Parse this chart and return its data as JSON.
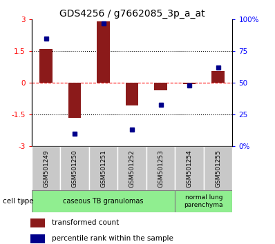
{
  "title": "GDS4256 / g7662085_3p_a_at",
  "samples": [
    "GSM501249",
    "GSM501250",
    "GSM501251",
    "GSM501252",
    "GSM501253",
    "GSM501254",
    "GSM501255"
  ],
  "transformed_count": [
    1.6,
    -1.65,
    2.9,
    -1.05,
    -0.35,
    -0.05,
    0.55
  ],
  "percentile_rank": [
    85,
    10,
    97,
    13,
    33,
    48,
    62
  ],
  "ylim_left": [
    -3,
    3
  ],
  "ylim_right": [
    0,
    100
  ],
  "yticks_left": [
    -3,
    -1.5,
    0,
    1.5,
    3
  ],
  "yticks_right": [
    0,
    25,
    50,
    75,
    100
  ],
  "ytick_labels_left": [
    "-3",
    "-1.5",
    "0",
    "1.5",
    "3"
  ],
  "ytick_labels_right": [
    "0%",
    "25",
    "50",
    "75",
    "100%"
  ],
  "hlines": [
    -1.5,
    0,
    1.5
  ],
  "hline_styles": [
    "dotted",
    "dashed",
    "dotted"
  ],
  "hline_colors": [
    "black",
    "red",
    "black"
  ],
  "bar_color": "#8B1A1A",
  "point_color": "#00008B",
  "bar_width": 0.45,
  "cell_type_label": "cell type",
  "legend_bar_label": "transformed count",
  "legend_point_label": "percentile rank within the sample",
  "title_fontsize": 10,
  "tick_fontsize": 7.5,
  "sample_fontsize": 6.5,
  "ct_fontsize": 7,
  "legend_fontsize": 7.5,
  "ct_group1_label": "caseous TB granulomas",
  "ct_group2_label": "normal lung\nparenchyma",
  "ct_color": "#90EE90",
  "sample_bg_color": "#C8C8C8",
  "n_group1": 5,
  "n_group2": 2
}
